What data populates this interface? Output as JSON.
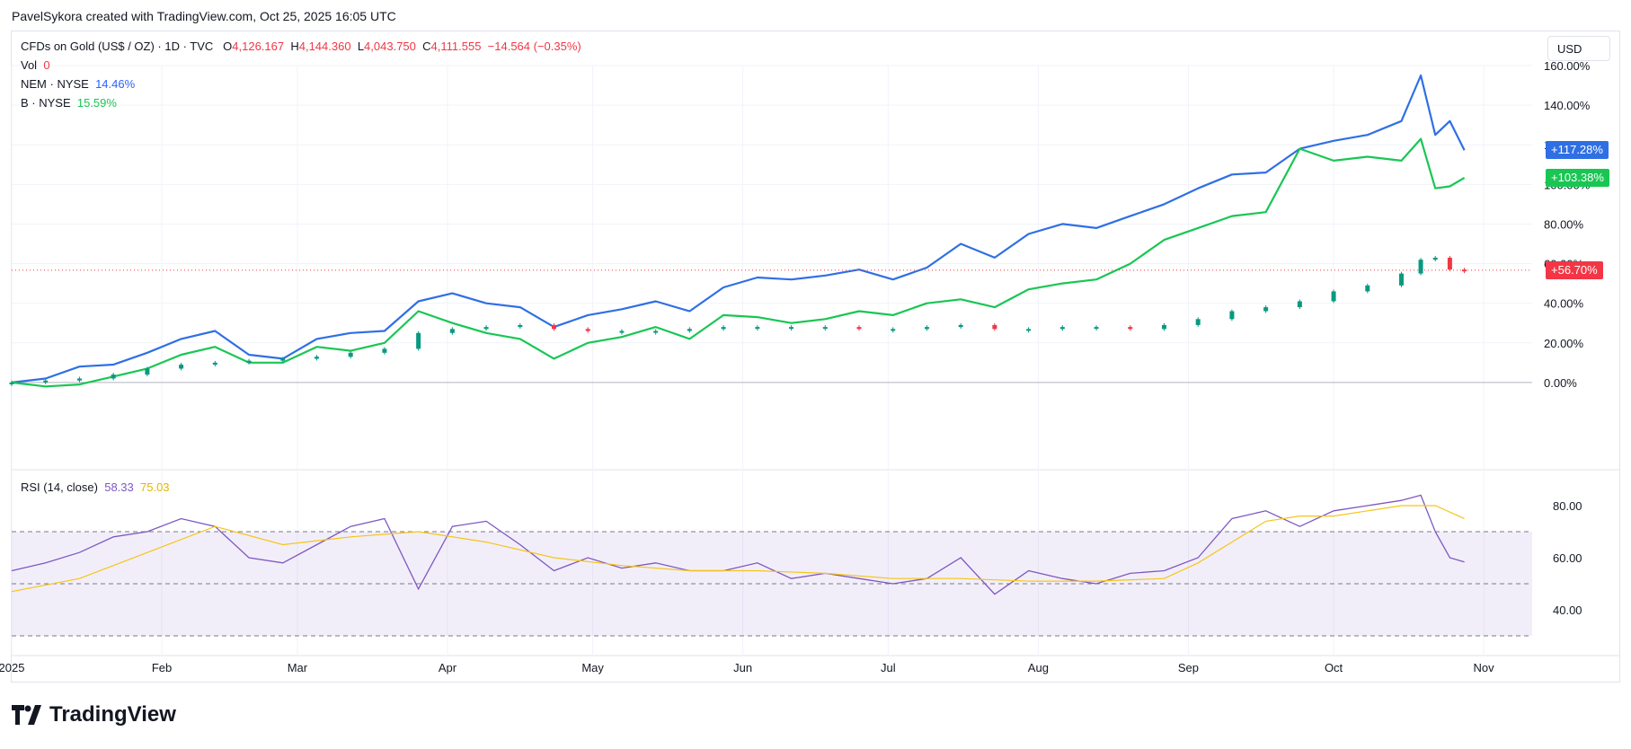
{
  "caption": "PavelSykora created with TradingView.com, Oct 25, 2025 16:05 UTC",
  "legend": {
    "main": {
      "symbol": "CFDs on Gold (US$ / OZ) · 1D · TVC",
      "o_label": "O",
      "o": "4,126.167",
      "h_label": "H",
      "h": "4,144.360",
      "l_label": "L",
      "l": "4,043.750",
      "c_label": "C",
      "c": "4,111.555",
      "change": "−14.564 (−0.35%)"
    },
    "vol_label": "Vol",
    "vol": "0",
    "nem_label": "NEM · NYSE",
    "nem": "14.46%",
    "b_label": "B · NYSE",
    "b": "15.59%",
    "rsi_label": "RSI (14, close)",
    "rsi_value": "58.33",
    "rsi_ma": "75.03"
  },
  "currency_button": "USD",
  "logo_text": "TradingView",
  "last_value_tags": {
    "nem": "+117.28%",
    "b": "+103.38%",
    "gold": "+56.70%"
  },
  "colors": {
    "nem": "#2f6fe4",
    "b": "#19c653",
    "gold_up": "#089981",
    "gold_down": "#f23645",
    "rsi": "#7e57c2",
    "rsi_ma": "#f5c518"
  },
  "chart_data": [
    {
      "type": "line",
      "ylim": [
        -20,
        160
      ],
      "y_ticks": [
        "0.00%",
        "20.00%",
        "40.00%",
        "60.00%",
        "80.00%",
        "100.00%",
        "120.00%",
        "140.00%",
        "160.00%"
      ],
      "y_tick_values": [
        0,
        20,
        40,
        60,
        80,
        100,
        120,
        140,
        160
      ],
      "x_ticks": [
        "2025",
        "Feb",
        "Mar",
        "Apr",
        "May",
        "Jun",
        "Jul",
        "Aug",
        "Sep",
        "Oct",
        "Nov"
      ],
      "x_tick_days": [
        0,
        31,
        59,
        90,
        120,
        151,
        181,
        212,
        243,
        273,
        304
      ],
      "series": [
        {
          "name": "NEM · NYSE",
          "x": [
            0,
            7,
            14,
            21,
            28,
            35,
            42,
            49,
            56,
            63,
            70,
            77,
            84,
            91,
            98,
            105,
            112,
            119,
            126,
            133,
            140,
            147,
            154,
            161,
            168,
            175,
            182,
            189,
            196,
            203,
            210,
            217,
            224,
            231,
            238,
            245,
            252,
            259,
            266,
            273,
            280,
            287,
            291,
            294,
            297,
            300
          ],
          "y": [
            0,
            2,
            8,
            9,
            15,
            22,
            26,
            14,
            12,
            22,
            25,
            26,
            41,
            45,
            40,
            38,
            28,
            34,
            37,
            41,
            36,
            48,
            53,
            52,
            54,
            57,
            52,
            58,
            70,
            63,
            75,
            80,
            78,
            84,
            90,
            98,
            105,
            106,
            118,
            122,
            125,
            132,
            155,
            125,
            132,
            117.28
          ]
        },
        {
          "name": "B · NYSE",
          "x": [
            0,
            7,
            14,
            21,
            28,
            35,
            42,
            49,
            56,
            63,
            70,
            77,
            84,
            91,
            98,
            105,
            112,
            119,
            126,
            133,
            140,
            147,
            154,
            161,
            168,
            175,
            182,
            189,
            196,
            203,
            210,
            217,
            224,
            231,
            238,
            245,
            252,
            259,
            266,
            273,
            280,
            287,
            291,
            294,
            297,
            300
          ],
          "y": [
            0,
            -2,
            -1,
            3,
            7,
            14,
            18,
            10,
            10,
            18,
            16,
            20,
            36,
            30,
            25,
            22,
            12,
            20,
            23,
            28,
            22,
            34,
            33,
            30,
            32,
            36,
            34,
            40,
            42,
            38,
            47,
            50,
            52,
            60,
            72,
            78,
            84,
            86,
            118,
            112,
            114,
            112,
            123,
            98,
            99,
            103.38
          ]
        }
      ],
      "candles": {
        "name": "CFDs on Gold (US$ / OZ)",
        "x": [
          0,
          7,
          14,
          21,
          28,
          35,
          42,
          49,
          56,
          63,
          70,
          77,
          84,
          91,
          98,
          105,
          112,
          119,
          126,
          133,
          140,
          147,
          154,
          161,
          168,
          175,
          182,
          189,
          196,
          203,
          210,
          217,
          224,
          231,
          238,
          245,
          252,
          259,
          266,
          273,
          280,
          287,
          291,
          294,
          297,
          300
        ],
        "y": [
          0,
          1,
          2,
          4,
          7,
          9,
          10,
          11,
          12,
          13,
          15,
          17,
          25,
          27,
          28,
          29,
          27,
          26,
          26,
          26,
          27,
          28,
          28,
          28,
          28,
          27,
          27,
          28,
          29,
          27,
          27,
          28,
          28,
          27,
          29,
          32,
          36,
          38,
          41,
          46,
          49,
          55,
          62,
          63,
          57,
          56.7
        ]
      }
    },
    {
      "type": "line",
      "title": "RSI (14, close)",
      "ylim": [
        30,
        90
      ],
      "y_ticks": [
        "40.00",
        "60.00",
        "80.00"
      ],
      "y_tick_values": [
        40,
        60,
        80
      ],
      "bands": [
        30,
        50,
        70
      ],
      "series": [
        {
          "name": "RSI",
          "x": [
            0,
            7,
            14,
            21,
            28,
            35,
            42,
            49,
            56,
            63,
            70,
            77,
            84,
            91,
            98,
            105,
            112,
            119,
            126,
            133,
            140,
            147,
            154,
            161,
            168,
            175,
            182,
            189,
            196,
            203,
            210,
            217,
            224,
            231,
            238,
            245,
            252,
            259,
            266,
            273,
            280,
            287,
            291,
            294,
            297,
            300
          ],
          "y": [
            55,
            58,
            62,
            68,
            70,
            75,
            72,
            60,
            58,
            65,
            72,
            75,
            48,
            72,
            74,
            65,
            55,
            60,
            56,
            58,
            55,
            55,
            58,
            52,
            54,
            52,
            50,
            52,
            60,
            46,
            55,
            52,
            50,
            54,
            55,
            60,
            75,
            78,
            72,
            78,
            80,
            82,
            84,
            70,
            60,
            58.33
          ]
        },
        {
          "name": "RSI MA",
          "x": [
            0,
            14,
            28,
            42,
            56,
            70,
            84,
            98,
            112,
            126,
            140,
            154,
            168,
            182,
            196,
            210,
            224,
            238,
            245,
            252,
            259,
            266,
            273,
            280,
            287,
            294,
            300
          ],
          "y": [
            47,
            52,
            62,
            72,
            65,
            68,
            70,
            66,
            60,
            57,
            55,
            55,
            54,
            52,
            52,
            51,
            51,
            52,
            58,
            66,
            74,
            76,
            76,
            78,
            80,
            80,
            75.03
          ]
        }
      ]
    }
  ]
}
